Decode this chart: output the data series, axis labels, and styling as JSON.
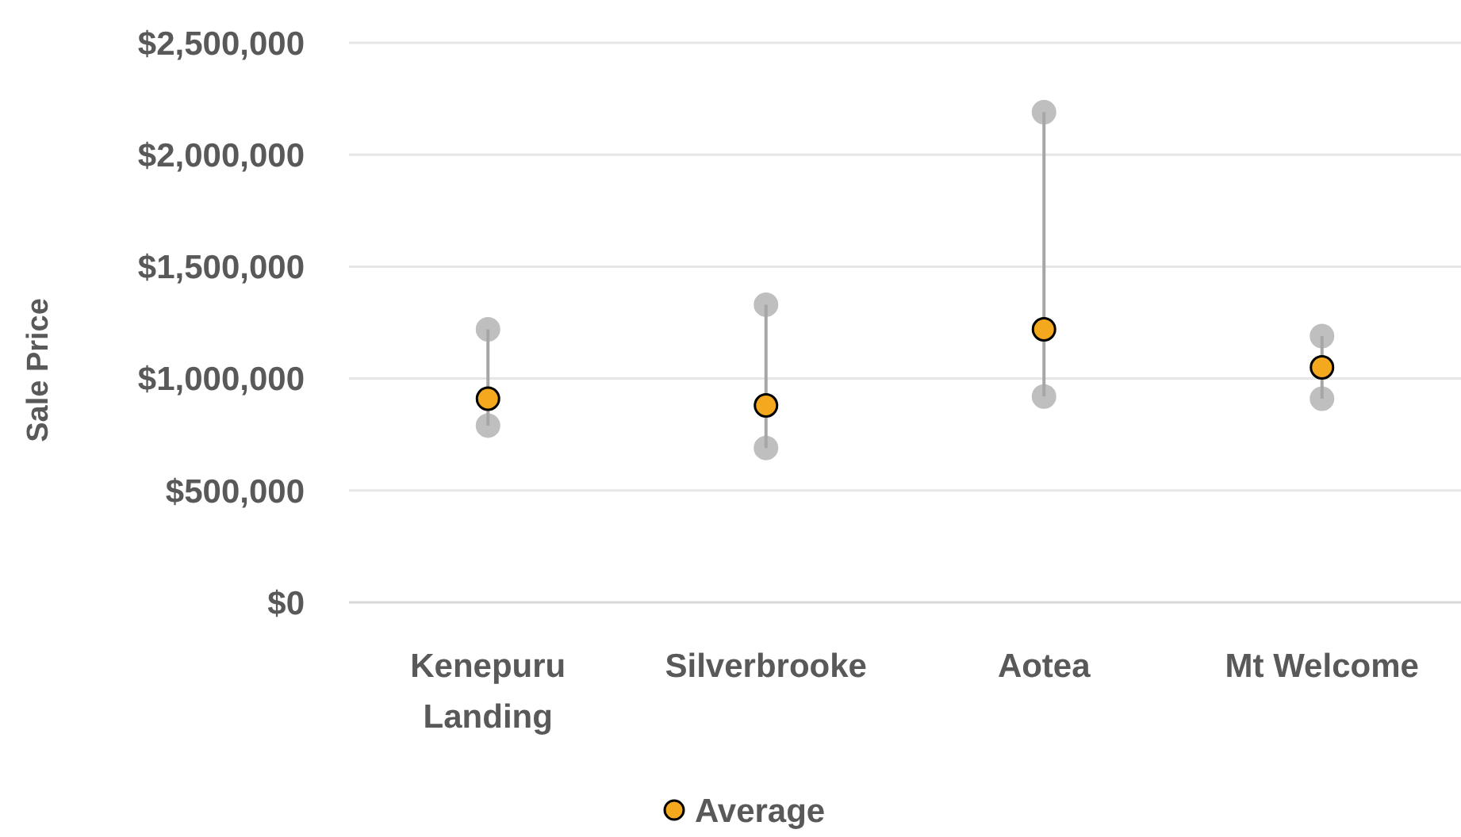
{
  "chart_data": {
    "type": "scatter",
    "ylabel": "Sale Price",
    "categories": [
      "Kenepuru Landing",
      "Silverbrooke",
      "Aotea",
      "Mt Welcome"
    ],
    "series": [
      {
        "color": "#bfbfbf",
        "values": [
          1220000,
          1330000,
          2190000,
          1190000
        ]
      },
      {
        "color": "#bfbfbf",
        "values": [
          790000,
          690000,
          920000,
          910000
        ]
      },
      {
        "type": "bar",
        "color": "#a6a6a6",
        "base": [
          790000,
          690000,
          920000,
          910000
        ],
        "values": [
          430000,
          640000,
          1270000,
          280000
        ]
      },
      {
        "name": "Average",
        "color": "#f4a81d",
        "values": [
          910000,
          880000,
          1220000,
          1050000
        ]
      }
    ],
    "ylim": [
      0,
      2500000
    ],
    "yticks": [
      {
        "value": 0,
        "label": "$0"
      },
      {
        "value": 500000,
        "label": "$500,000"
      },
      {
        "value": 1000000,
        "label": "$1,000,000"
      },
      {
        "value": 1500000,
        "label": "$1,500,000"
      },
      {
        "value": 2000000,
        "label": "$2,000,000"
      },
      {
        "value": 2500000,
        "label": "$2,500,000"
      }
    ],
    "grid": "y",
    "legend": "bottom",
    "marker": "circle"
  }
}
